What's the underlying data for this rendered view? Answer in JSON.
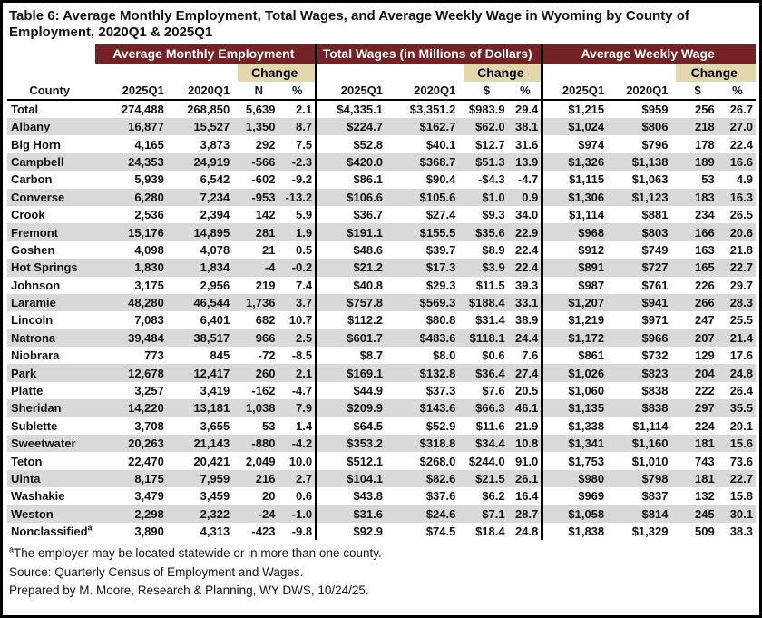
{
  "title": "Table 6: Average Monthly Employment, Total Wages, and Average Weekly Wage in Wyoming by County of Employment, 2020Q1 & 2025Q1",
  "table": {
    "group_headers": [
      "Average Monthly Employment",
      "Total Wages (in Millions of Dollars)",
      "Average Weekly Wage"
    ],
    "change_label": "Change",
    "column_headers": [
      "County",
      "2025Q1",
      "2020Q1",
      "N",
      "%",
      "2025Q1",
      "2020Q1",
      "$",
      "%",
      "2025Q1",
      "2020Q1",
      "$",
      "%"
    ],
    "total_row": [
      "Total",
      "274,488",
      "268,850",
      "5,639",
      "2.1",
      "$4,335.1",
      "$3,351.2",
      "$983.9",
      "29.4",
      "$1,215",
      "$959",
      "256",
      "26.7"
    ],
    "rows": [
      [
        "Albany",
        "16,877",
        "15,527",
        "1,350",
        "8.7",
        "$224.7",
        "$162.7",
        "$62.0",
        "38.1",
        "$1,024",
        "$806",
        "218",
        "27.0"
      ],
      [
        "Big Horn",
        "4,165",
        "3,873",
        "292",
        "7.5",
        "$52.8",
        "$40.1",
        "$12.7",
        "31.6",
        "$974",
        "$796",
        "178",
        "22.4"
      ],
      [
        "Campbell",
        "24,353",
        "24,919",
        "-566",
        "-2.3",
        "$420.0",
        "$368.7",
        "$51.3",
        "13.9",
        "$1,326",
        "$1,138",
        "189",
        "16.6"
      ],
      [
        "Carbon",
        "5,939",
        "6,542",
        "-602",
        "-9.2",
        "$86.1",
        "$90.4",
        "-$4.3",
        "-4.7",
        "$1,115",
        "$1,063",
        "53",
        "4.9"
      ],
      [
        "Converse",
        "6,280",
        "7,234",
        "-953",
        "-13.2",
        "$106.6",
        "$105.6",
        "$1.0",
        "0.9",
        "$1,306",
        "$1,123",
        "183",
        "16.3"
      ],
      [
        "Crook",
        "2,536",
        "2,394",
        "142",
        "5.9",
        "$36.7",
        "$27.4",
        "$9.3",
        "34.0",
        "$1,114",
        "$881",
        "234",
        "26.5"
      ],
      [
        "Fremont",
        "15,176",
        "14,895",
        "281",
        "1.9",
        "$191.1",
        "$155.5",
        "$35.6",
        "22.9",
        "$968",
        "$803",
        "166",
        "20.6"
      ],
      [
        "Goshen",
        "4,098",
        "4,078",
        "21",
        "0.5",
        "$48.6",
        "$39.7",
        "$8.9",
        "22.4",
        "$912",
        "$749",
        "163",
        "21.8"
      ],
      [
        "Hot Springs",
        "1,830",
        "1,834",
        "-4",
        "-0.2",
        "$21.2",
        "$17.3",
        "$3.9",
        "22.4",
        "$891",
        "$727",
        "165",
        "22.7"
      ],
      [
        "Johnson",
        "3,175",
        "2,956",
        "219",
        "7.4",
        "$40.8",
        "$29.3",
        "$11.5",
        "39.3",
        "$987",
        "$761",
        "226",
        "29.7"
      ],
      [
        "Laramie",
        "48,280",
        "46,544",
        "1,736",
        "3.7",
        "$757.8",
        "$569.3",
        "$188.4",
        "33.1",
        "$1,207",
        "$941",
        "266",
        "28.3"
      ],
      [
        "Lincoln",
        "7,083",
        "6,401",
        "682",
        "10.7",
        "$112.2",
        "$80.8",
        "$31.4",
        "38.9",
        "$1,219",
        "$971",
        "247",
        "25.5"
      ],
      [
        "Natrona",
        "39,484",
        "38,517",
        "966",
        "2.5",
        "$601.7",
        "$483.6",
        "$118.1",
        "24.4",
        "$1,172",
        "$966",
        "207",
        "21.4"
      ],
      [
        "Niobrara",
        "773",
        "845",
        "-72",
        "-8.5",
        "$8.7",
        "$8.0",
        "$0.6",
        "7.6",
        "$861",
        "$732",
        "129",
        "17.6"
      ],
      [
        "Park",
        "12,678",
        "12,417",
        "260",
        "2.1",
        "$169.1",
        "$132.8",
        "$36.4",
        "27.4",
        "$1,026",
        "$823",
        "204",
        "24.8"
      ],
      [
        "Platte",
        "3,257",
        "3,419",
        "-162",
        "-4.7",
        "$44.9",
        "$37.3",
        "$7.6",
        "20.5",
        "$1,060",
        "$838",
        "222",
        "26.4"
      ],
      [
        "Sheridan",
        "14,220",
        "13,181",
        "1,038",
        "7.9",
        "$209.9",
        "$143.6",
        "$66.3",
        "46.1",
        "$1,135",
        "$838",
        "297",
        "35.5"
      ],
      [
        "Sublette",
        "3,708",
        "3,655",
        "53",
        "1.4",
        "$64.5",
        "$52.9",
        "$11.6",
        "21.9",
        "$1,338",
        "$1,114",
        "224",
        "20.1"
      ],
      [
        "Sweetwater",
        "20,263",
        "21,143",
        "-880",
        "-4.2",
        "$353.2",
        "$318.8",
        "$34.4",
        "10.8",
        "$1,341",
        "$1,160",
        "181",
        "15.6"
      ],
      [
        "Teton",
        "22,470",
        "20,421",
        "2,049",
        "10.0",
        "$512.1",
        "$268.0",
        "$244.0",
        "91.0",
        "$1,753",
        "$1,010",
        "743",
        "73.6"
      ],
      [
        "Uinta",
        "8,175",
        "7,959",
        "216",
        "2.7",
        "$104.1",
        "$82.6",
        "$21.5",
        "26.1",
        "$980",
        "$798",
        "181",
        "22.7"
      ],
      [
        "Washakie",
        "3,479",
        "3,459",
        "20",
        "0.6",
        "$43.8",
        "$37.6",
        "$6.2",
        "16.4",
        "$969",
        "$837",
        "132",
        "15.8"
      ],
      [
        "Weston",
        "2,298",
        "2,322",
        "-24",
        "-1.0",
        "$31.6",
        "$24.6",
        "$7.1",
        "28.7",
        "$1,058",
        "$814",
        "245",
        "30.1"
      ],
      [
        "Nonclassified^a",
        "3,890",
        "4,313",
        "-423",
        "-9.8",
        "$92.9",
        "$74.5",
        "$18.4",
        "24.8",
        "$1,838",
        "$1,329",
        "509",
        "38.3"
      ]
    ]
  },
  "footer": {
    "footnote_marker": "a",
    "footnote_text": "The employer may be located statewide or in more than one county.",
    "source": "Source: Quarterly Census of Employment and Wages.",
    "prepared": "Prepared by M. Moore, Research & Planning, WY DWS, 10/24/25."
  },
  "colors": {
    "maroon": "#752226",
    "tan": "#e3d7ae",
    "stripe": "#d9d9d9",
    "ink": "#111111"
  }
}
